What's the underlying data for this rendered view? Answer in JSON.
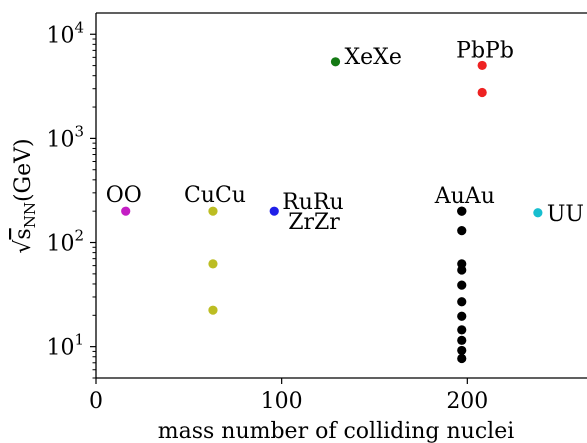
{
  "chart_data": {
    "type": "scatter",
    "xlabel": "mass number of colliding nuclei",
    "ylabel_parts": {
      "prefix": "√",
      "base": "s",
      "sub": "NN",
      "unit": "(GeV)"
    },
    "xlim": [
      0,
      265
    ],
    "ylim": [
      5,
      16000
    ],
    "yscale": "log",
    "grid": false,
    "x_ticks": [
      0,
      100,
      200
    ],
    "x_tick_labels": [
      "0",
      "100",
      "200"
    ],
    "y_ticks": [
      10,
      100,
      1000,
      10000
    ],
    "y_tick_labels": [
      {
        "base": "10",
        "exp": "1"
      },
      {
        "base": "10",
        "exp": "2"
      },
      {
        "base": "10",
        "exp": "3"
      },
      {
        "base": "10",
        "exp": "4"
      }
    ],
    "series": [
      {
        "name": "OO",
        "color": "#c41ec4",
        "x": [
          16
        ],
        "y": [
          200
        ]
      },
      {
        "name": "CuCu",
        "color": "#bcbd22",
        "x": [
          63,
          63,
          63
        ],
        "y": [
          200,
          62.4,
          22.4
        ]
      },
      {
        "name": "RuRu",
        "color": "#1f1fe8",
        "x": [
          96
        ],
        "y": [
          200
        ]
      },
      {
        "name": "XeXe",
        "color": "#147a14",
        "x": [
          129
        ],
        "y": [
          5440
        ]
      },
      {
        "name": "AuAu",
        "color": "#000000",
        "x": [
          197,
          197,
          197,
          197,
          197,
          197,
          197,
          197,
          197,
          197,
          197,
          197
        ],
        "y": [
          200,
          130,
          62.4,
          54.4,
          39,
          27,
          19.6,
          14.5,
          11.5,
          9.2,
          7.7,
          200
        ]
      },
      {
        "name": "PbPb",
        "color": "#ee2222",
        "x": [
          208,
          208
        ],
        "y": [
          5020,
          2760
        ]
      },
      {
        "name": "UU",
        "color": "#17becf",
        "x": [
          238
        ],
        "y": [
          193
        ]
      }
    ],
    "annotations": [
      {
        "text": "OO",
        "x": 16,
        "y": 200
      },
      {
        "text": "CuCu",
        "x": 63,
        "y": 200
      },
      {
        "text": "RuRu",
        "x": 96,
        "y": 200
      },
      {
        "text": "ZrZr",
        "x": 96,
        "y": 200
      },
      {
        "text": "XeXe",
        "x": 129,
        "y": 5440
      },
      {
        "text": "AuAu",
        "x": 197,
        "y": 200
      },
      {
        "text": "PbPb",
        "x": 208,
        "y": 5020
      },
      {
        "text": "UU",
        "x": 238,
        "y": 193
      }
    ]
  }
}
